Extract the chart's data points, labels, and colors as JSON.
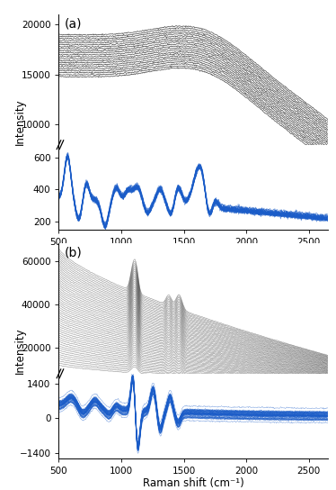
{
  "raman_shift_min": 500,
  "raman_shift_max": 2650,
  "n_points": 500,
  "panel_a": {
    "label": "(a)",
    "n_black_lines": 22,
    "black_ylim": [
      8000,
      21000
    ],
    "black_yticks": [
      10000,
      15000,
      20000
    ],
    "blue_ylim": [
      150,
      680
    ],
    "blue_yticks": [
      200,
      400,
      600
    ],
    "black_color": "#111111",
    "blue_color": "#1a5cc8",
    "black_alpha": 0.75,
    "blue_alpha": 0.65,
    "ylabel": "Intensity",
    "xlabel": "Raman shift (cm⁻¹)"
  },
  "panel_b": {
    "label": "(b)",
    "n_black_lines": 55,
    "black_ylim": [
      8000,
      68000
    ],
    "black_yticks": [
      20000,
      40000,
      60000
    ],
    "blue_ylim": [
      -1600,
      1800
    ],
    "blue_yticks": [
      -1400,
      0,
      1400
    ],
    "black_color": "#111111",
    "blue_color": "#1a5cc8",
    "black_alpha": 0.45,
    "blue_alpha": 0.55,
    "ylabel": "Intensity",
    "xlabel": "Raman shift (cm⁻¹)"
  },
  "fig_facecolor": "#ffffff",
  "tick_label_fontsize": 7.5,
  "axis_label_fontsize": 8.5,
  "panel_label_fontsize": 10
}
